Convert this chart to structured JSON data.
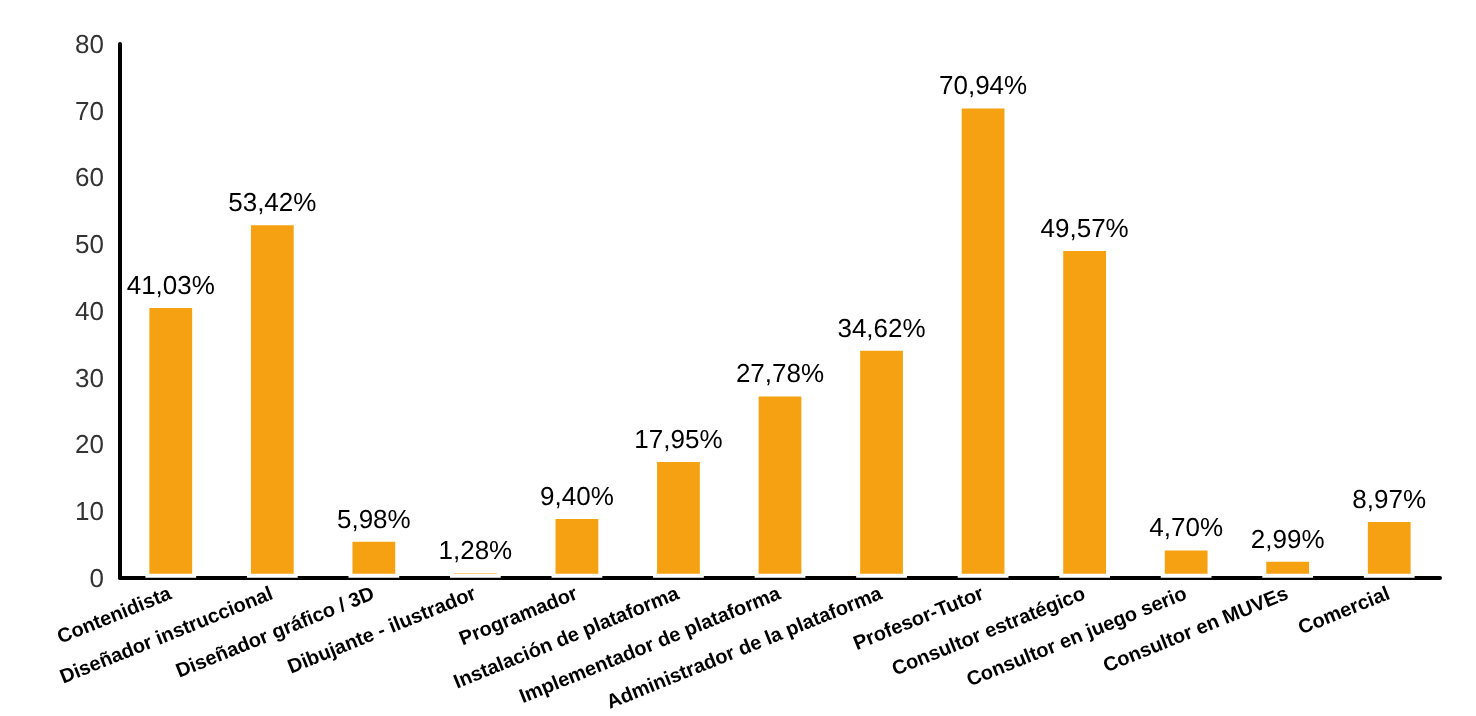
{
  "chart_data": {
    "type": "bar",
    "categories": [
      "Contenidista",
      "Diseñador instruccional",
      "Diseñador gráfico / 3D",
      "Dibujante - ilustrador",
      "Programador",
      "Instalación de plataforma",
      "Implementador de plataforma",
      "Administrador de la plataforma",
      "Profesor-Tutor",
      "Consultor estratégico",
      "Consultor en juego serio",
      "Consultor en MUVEs",
      "Comercial"
    ],
    "values": [
      41.03,
      53.42,
      5.98,
      1.28,
      9.4,
      17.95,
      27.78,
      34.62,
      70.94,
      49.57,
      4.7,
      2.99,
      8.97
    ],
    "value_labels": [
      "41,03%",
      "53,42%",
      "5,98%",
      "1,28%",
      "9,40%",
      "17,95%",
      "27,78%",
      "34,62%",
      "70,94%",
      "49,57%",
      "4,70%",
      "2,99%",
      "8,97%"
    ],
    "color": "#f5a111",
    "ylim": [
      0,
      80
    ],
    "yticks": [
      0,
      10,
      20,
      30,
      40,
      50,
      60,
      70,
      80
    ],
    "grid": false
  }
}
